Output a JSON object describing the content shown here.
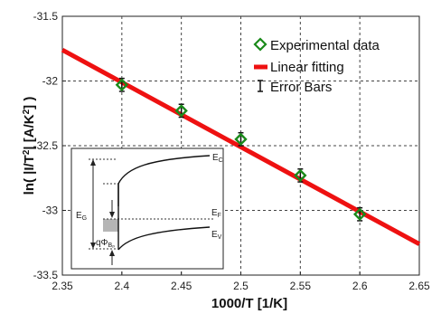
{
  "chart_data": {
    "type": "scatter",
    "xlabel": "1000/T [1/K]",
    "ylabel_parts": {
      "prefix": "ln( |I/T",
      "sup1": "2",
      "middle": "| [A/K",
      "sup2": "2",
      "suffix": "] )"
    },
    "xlim": [
      2.35,
      2.65
    ],
    "ylim": [
      -33.5,
      -31.5
    ],
    "xticks": [
      2.35,
      2.4,
      2.45,
      2.5,
      2.55,
      2.6,
      2.65
    ],
    "yticks": [
      -31.5,
      -32,
      -32.5,
      -33,
      -33.5
    ],
    "grid": true,
    "series": [
      {
        "name": "Experimental data",
        "kind": "scatter",
        "marker": "diamond",
        "color": "#1a8a1a",
        "x": [
          2.4,
          2.45,
          2.5,
          2.55,
          2.6
        ],
        "y": [
          -32.03,
          -32.23,
          -32.45,
          -32.73,
          -33.03
        ],
        "yerr": [
          0.05,
          0.05,
          0.05,
          0.05,
          0.05
        ]
      },
      {
        "name": "Linear fitting",
        "kind": "line",
        "color": "#ee1111",
        "x": [
          2.35,
          2.65
        ],
        "y": [
          -31.76,
          -33.26
        ]
      }
    ],
    "error_bars_label": "Error Bars",
    "legend_position": "top-right",
    "inset": {
      "label_ec": "E",
      "label_ec_sub": "C",
      "label_ef": "E",
      "label_ef_sub": "F",
      "label_ev": "E",
      "label_ev_sub": "V",
      "label_eg": "E",
      "label_eg_sub": "G",
      "label_phi": "qΦ",
      "label_phi_sub": "Bₚ",
      "position": "bottom-left"
    }
  }
}
